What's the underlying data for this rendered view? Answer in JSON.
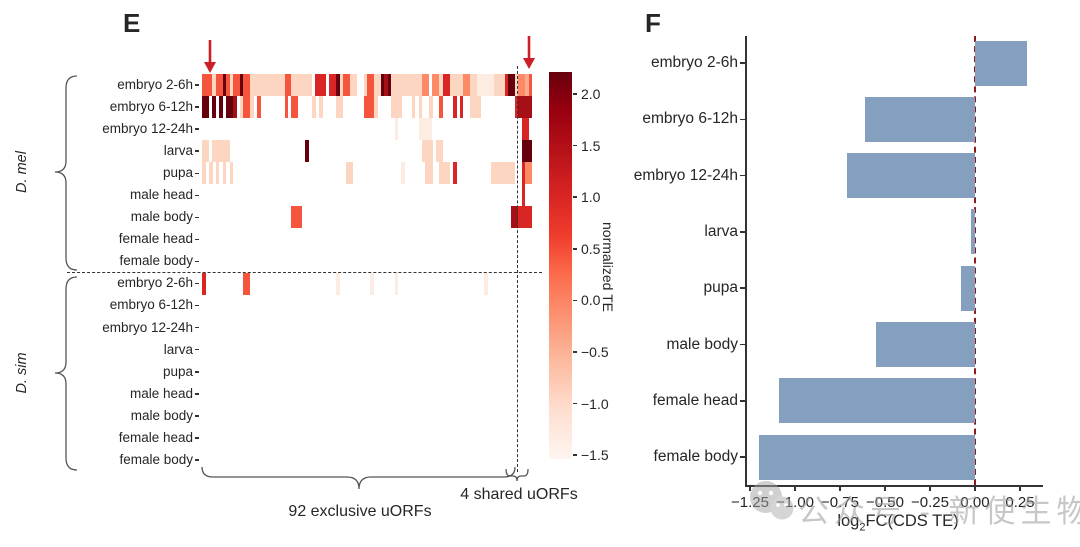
{
  "figure": {
    "panel_e": {
      "label": "E",
      "groups": [
        {
          "species": "D. mel",
          "rows": [
            "embryo 2-6h",
            "embryo 6-12h",
            "embryo 12-24h",
            "larva",
            "pupa",
            "male head",
            "male body",
            "female head",
            "female body"
          ]
        },
        {
          "species": "D. sim",
          "rows": [
            "embryo 2-6h",
            "embryo 6-12h",
            "embryo 12-24h",
            "larva",
            "pupa",
            "male head",
            "male body",
            "female head",
            "female body"
          ]
        }
      ],
      "colorbar": {
        "title": "normalized TE",
        "ticks": [
          "2.0",
          "1.5",
          "1.0",
          "0.5",
          "0.0",
          "−0.5",
          "−1.0",
          "−1.5"
        ]
      },
      "annotations": {
        "exclusive": "92 exclusive uORFs",
        "shared": "4 shared uORFs"
      }
    },
    "panel_f": {
      "label": "F",
      "xlabel_prefix": "log",
      "xlabel_sub": "2",
      "xlabel_rest": "FC(CDS TE)"
    }
  },
  "watermark": {
    "icon": "wechat-icon",
    "text": "公众号 - 新使生物"
  },
  "chart_data": [
    {
      "type": "heatmap",
      "panel": "E",
      "value_label": "normalized TE",
      "colorbar_ticks": [
        2.0,
        1.5,
        1.0,
        0.5,
        0.0,
        -0.5,
        -1.0,
        -1.5
      ],
      "value_range": [
        -1.5,
        2.2
      ],
      "colormap": "Reds",
      "n_columns": 96,
      "column_groups": [
        {
          "label": "92 exclusive uORFs",
          "count": 92
        },
        {
          "label": "4 shared uORFs",
          "count": 4
        }
      ],
      "row_groups": [
        {
          "species": "D. mel",
          "rows": [
            "embryo 2-6h",
            "embryo 6-12h",
            "embryo 12-24h",
            "larva",
            "pupa",
            "male head",
            "male body",
            "female head",
            "female body"
          ]
        },
        {
          "species": "D. sim",
          "rows": [
            "embryo 2-6h",
            "embryo 6-12h",
            "embryo 12-24h",
            "larva",
            "pupa",
            "male head",
            "male body",
            "female head",
            "female body"
          ]
        }
      ],
      "levels": [
        "#ffffff",
        "#fdece1",
        "#fcd6c0",
        "#fcab8e",
        "#fc8a67",
        "#f5553d",
        "#d92523",
        "#a50f15",
        "#67000d"
      ],
      "rows_rle": [
        [
          [
            1,
            3,
            5
          ],
          [
            4,
            4,
            2
          ],
          [
            5,
            6,
            5
          ],
          [
            7,
            7,
            8
          ],
          [
            8,
            8,
            5
          ],
          [
            9,
            9,
            2
          ],
          [
            10,
            11,
            5
          ],
          [
            12,
            12,
            8
          ],
          [
            13,
            14,
            5
          ],
          [
            15,
            24,
            2
          ],
          [
            25,
            26,
            5
          ],
          [
            27,
            32,
            2
          ],
          [
            34,
            36,
            6
          ],
          [
            38,
            39,
            6
          ],
          [
            40,
            40,
            8
          ],
          [
            41,
            41,
            2
          ],
          [
            42,
            43,
            5
          ],
          [
            44,
            45,
            2
          ],
          [
            48,
            48,
            2
          ],
          [
            49,
            50,
            5
          ],
          [
            51,
            52,
            2
          ],
          [
            53,
            53,
            8
          ],
          [
            54,
            54,
            7
          ],
          [
            55,
            55,
            8
          ],
          [
            56,
            64,
            2
          ],
          [
            65,
            66,
            4
          ],
          [
            68,
            69,
            4
          ],
          [
            70,
            70,
            2
          ],
          [
            71,
            72,
            6
          ],
          [
            73,
            76,
            2
          ],
          [
            77,
            78,
            4
          ],
          [
            79,
            80,
            2
          ],
          [
            81,
            85,
            1
          ],
          [
            86,
            88,
            2
          ],
          [
            89,
            89,
            6
          ],
          [
            90,
            91,
            8
          ],
          [
            92,
            92,
            2
          ],
          [
            93,
            94,
            4
          ],
          [
            95,
            95,
            3
          ],
          [
            96,
            96,
            5
          ]
        ],
        [
          [
            1,
            2,
            8
          ],
          [
            4,
            4,
            8
          ],
          [
            6,
            6,
            8
          ],
          [
            8,
            9,
            8
          ],
          [
            10,
            10,
            7
          ],
          [
            12,
            12,
            2
          ],
          [
            13,
            14,
            5
          ],
          [
            15,
            15,
            2
          ],
          [
            17,
            17,
            5
          ],
          [
            25,
            25,
            5
          ],
          [
            27,
            28,
            5
          ],
          [
            33,
            33,
            2
          ],
          [
            35,
            35,
            2
          ],
          [
            40,
            41,
            2
          ],
          [
            48,
            50,
            5
          ],
          [
            51,
            51,
            2
          ],
          [
            56,
            58,
            2
          ],
          [
            62,
            62,
            2
          ],
          [
            64,
            64,
            2
          ],
          [
            67,
            67,
            2
          ],
          [
            70,
            70,
            5
          ],
          [
            74,
            74,
            6
          ],
          [
            76,
            76,
            6
          ],
          [
            79,
            81,
            2
          ],
          [
            92,
            92,
            6
          ],
          [
            93,
            96,
            7
          ]
        ],
        [
          [
            57,
            57,
            1
          ],
          [
            64,
            67,
            1
          ],
          [
            94,
            95,
            6
          ]
        ],
        [
          [
            1,
            2,
            2
          ],
          [
            4,
            8,
            2
          ],
          [
            31,
            31,
            8
          ],
          [
            65,
            67,
            2
          ],
          [
            69,
            70,
            2
          ],
          [
            94,
            96,
            8
          ]
        ],
        [
          [
            1,
            1,
            2
          ],
          [
            3,
            3,
            2
          ],
          [
            5,
            5,
            2
          ],
          [
            7,
            7,
            2
          ],
          [
            9,
            9,
            2
          ],
          [
            43,
            44,
            2
          ],
          [
            59,
            59,
            1
          ],
          [
            66,
            67,
            2
          ],
          [
            70,
            72,
            2
          ],
          [
            74,
            74,
            6
          ],
          [
            85,
            91,
            2
          ],
          [
            94,
            94,
            6
          ],
          [
            95,
            96,
            4
          ]
        ],
        [
          [
            94,
            94,
            6
          ]
        ],
        [
          [
            27,
            29,
            5
          ],
          [
            91,
            92,
            7
          ],
          [
            93,
            96,
            6
          ]
        ],
        [],
        [],
        [
          [
            1,
            1,
            6
          ],
          [
            13,
            14,
            5
          ],
          [
            40,
            40,
            1
          ],
          [
            50,
            50,
            1
          ],
          [
            57,
            57,
            1
          ],
          [
            83,
            83,
            1
          ]
        ],
        [],
        [],
        [],
        [],
        [],
        [],
        [],
        []
      ]
    },
    {
      "type": "bar",
      "panel": "F",
      "orientation": "horizontal",
      "categories": [
        "embryo 2-6h",
        "embryo 6-12h",
        "embryo 12-24h",
        "larva",
        "pupa",
        "male body",
        "female head",
        "female body"
      ],
      "values": [
        0.29,
        -0.61,
        -0.71,
        -0.02,
        -0.08,
        -0.55,
        -1.09,
        -1.2
      ],
      "xlabel": "log2FC(CDS TE)",
      "xticks": [
        -1.25,
        -1.0,
        -0.75,
        -0.5,
        -0.25,
        0,
        0.25
      ],
      "xtick_labels": [
        "−1.25",
        "−1.00",
        "−0.75",
        "−0.50",
        "−0.25",
        "0.00",
        "0.25"
      ],
      "xlim": [
        -1.28,
        0.39
      ],
      "zero_line": 0,
      "bar_color": "#84a0be",
      "zero_line_color": "#8e1b1b",
      "grid": false,
      "legend": "none"
    }
  ]
}
